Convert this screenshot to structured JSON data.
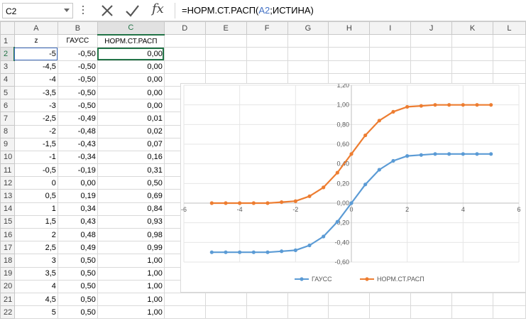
{
  "formula_bar": {
    "name_box": "C2",
    "fx_label": "fx",
    "formula_prefix": "=НОРМ.СТ.РАСП(",
    "formula_ref": "A2",
    "formula_suffix": ";ИСТИНА)"
  },
  "sheet": {
    "columns": [
      "A",
      "B",
      "C",
      "D",
      "E",
      "F",
      "G",
      "H",
      "I",
      "J",
      "K",
      "L"
    ],
    "rows": [
      "1",
      "2",
      "3",
      "4",
      "5",
      "6",
      "7",
      "8",
      "9",
      "10",
      "11",
      "12",
      "13",
      "14",
      "15",
      "16",
      "17",
      "18",
      "19",
      "20",
      "21",
      "22"
    ],
    "headers": [
      "z",
      "ГАУСС",
      "НОРМ.СТ.РАСП"
    ],
    "data": [
      [
        "-5",
        "-0,50",
        "0,00"
      ],
      [
        "-4,5",
        "-0,50",
        "0,00"
      ],
      [
        "-4",
        "-0,50",
        "0,00"
      ],
      [
        "-3,5",
        "-0,50",
        "0,00"
      ],
      [
        "-3",
        "-0,50",
        "0,00"
      ],
      [
        "-2,5",
        "-0,49",
        "0,01"
      ],
      [
        "-2",
        "-0,48",
        "0,02"
      ],
      [
        "-1,5",
        "-0,43",
        "0,07"
      ],
      [
        "-1",
        "-0,34",
        "0,16"
      ],
      [
        "-0,5",
        "-0,19",
        "0,31"
      ],
      [
        "0",
        "0,00",
        "0,50"
      ],
      [
        "0,5",
        "0,19",
        "0,69"
      ],
      [
        "1",
        "0,34",
        "0,84"
      ],
      [
        "1,5",
        "0,43",
        "0,93"
      ],
      [
        "2",
        "0,48",
        "0,98"
      ],
      [
        "2,5",
        "0,49",
        "0,99"
      ],
      [
        "3",
        "0,50",
        "1,00"
      ],
      [
        "3,5",
        "0,50",
        "1,00"
      ],
      [
        "4",
        "0,50",
        "1,00"
      ],
      [
        "4,5",
        "0,50",
        "1,00"
      ],
      [
        "5",
        "0,50",
        "1,00"
      ]
    ]
  },
  "colors": {
    "series1": "#5b9bd5",
    "series2": "#ed7d31",
    "accent": "#217346"
  },
  "chart_data": {
    "type": "scatter",
    "title": "",
    "xlim": [
      -6,
      6
    ],
    "ylim": [
      -0.6,
      1.2
    ],
    "x_ticks": [
      "-6",
      "-4",
      "-2",
      "0",
      "2",
      "4",
      "6"
    ],
    "y_ticks": [
      "-0,60",
      "-0,40",
      "-0,20",
      "0,00",
      "0,20",
      "0,40",
      "0,60",
      "0,80",
      "1,00",
      "1,20"
    ],
    "legend_position": "bottom",
    "x": [
      -5,
      -4.5,
      -4,
      -3.5,
      -3,
      -2.5,
      -2,
      -1.5,
      -1,
      -0.5,
      0,
      0.5,
      1,
      1.5,
      2,
      2.5,
      3,
      3.5,
      4,
      4.5,
      5
    ],
    "series": [
      {
        "name": "ГАУСС",
        "values": [
          -0.5,
          -0.5,
          -0.5,
          -0.5,
          -0.5,
          -0.49,
          -0.48,
          -0.43,
          -0.34,
          -0.19,
          0,
          0.19,
          0.34,
          0.43,
          0.48,
          0.49,
          0.5,
          0.5,
          0.5,
          0.5,
          0.5
        ]
      },
      {
        "name": "НОРМ.СТ.РАСП",
        "values": [
          0,
          0,
          0,
          0,
          0,
          0.01,
          0.02,
          0.07,
          0.16,
          0.31,
          0.5,
          0.69,
          0.84,
          0.93,
          0.98,
          0.99,
          1,
          1,
          1,
          1,
          1
        ]
      }
    ]
  }
}
